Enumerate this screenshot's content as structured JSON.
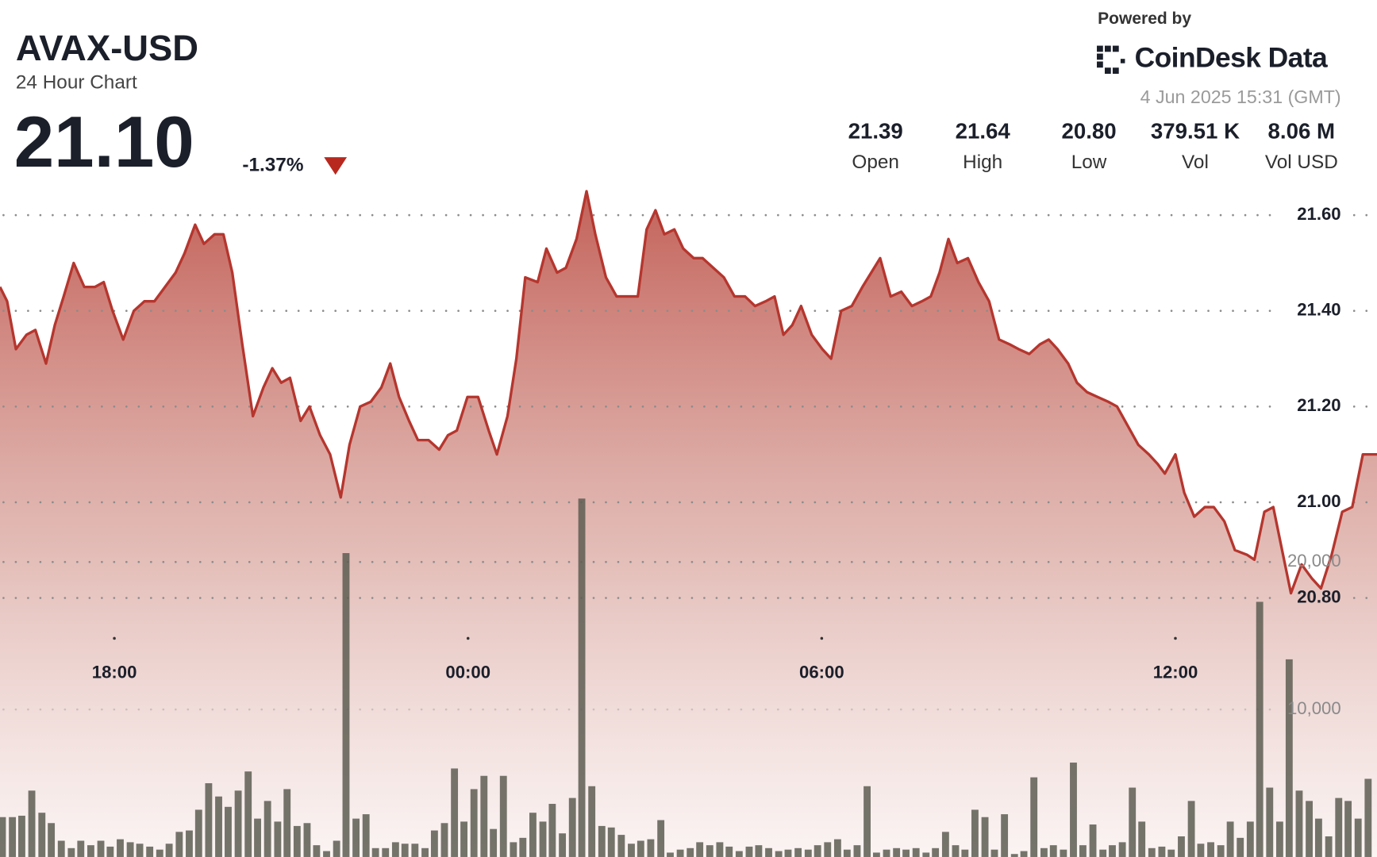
{
  "header": {
    "title": "AVAX-USD",
    "subtitle": "24 Hour Chart",
    "price": "21.10",
    "change": "-1.37%",
    "powered_by": "Powered by",
    "brand": "CoinDesk Data",
    "timestamp": "4 Jun 2025 15:31 (GMT)",
    "stats": [
      {
        "value": "21.39",
        "label": "Open"
      },
      {
        "value": "21.64",
        "label": "High"
      },
      {
        "value": "20.80",
        "label": "Low"
      },
      {
        "value": "379.51 K",
        "label": "Vol"
      },
      {
        "value": "8.06 M",
        "label": "Vol USD"
      }
    ]
  },
  "chart_data": {
    "type": "area",
    "xlim": [
      16.06,
      39.42
    ],
    "xticks": [
      {
        "value": 18,
        "label": "18:00"
      },
      {
        "value": 24,
        "label": "00:00"
      },
      {
        "value": 30,
        "label": "06:00"
      },
      {
        "value": 36,
        "label": "12:00"
      }
    ],
    "ylim": [
      20.26,
      21.7
    ],
    "yticks": [
      {
        "value": 21.6,
        "label": "21.60"
      },
      {
        "value": 21.4,
        "label": "21.40"
      },
      {
        "value": 21.2,
        "label": "21.20"
      },
      {
        "value": 21.0,
        "label": "21.00"
      },
      {
        "value": 20.8,
        "label": "20.80"
      }
    ],
    "y2lim": [
      0,
      40000
    ],
    "y2ticks": [
      {
        "value": 10000,
        "label": "10,000"
      },
      {
        "value": 20000,
        "label": "20,000"
      }
    ],
    "grid": true,
    "price": {
      "color": "#b5362e",
      "x": [
        16.06,
        16.18,
        16.33,
        16.51,
        16.66,
        16.84,
        16.99,
        17.14,
        17.31,
        17.49,
        17.67,
        17.82,
        17.97,
        18.15,
        18.33,
        18.51,
        18.68,
        18.86,
        19.04,
        19.19,
        19.37,
        19.52,
        19.7,
        19.85,
        20.0,
        20.17,
        20.35,
        20.53,
        20.68,
        20.83,
        20.98,
        21.16,
        21.31,
        21.49,
        21.66,
        21.84,
        21.99,
        22.17,
        22.35,
        22.53,
        22.68,
        22.83,
        23.0,
        23.15,
        23.33,
        23.51,
        23.66,
        23.81,
        23.99,
        24.17,
        24.35,
        24.49,
        24.67,
        24.82,
        24.97,
        25.18,
        25.33,
        25.51,
        25.66,
        25.84,
        26.01,
        26.16,
        26.34,
        26.52,
        26.7,
        26.88,
        27.03,
        27.18,
        27.33,
        27.5,
        27.65,
        27.83,
        27.98,
        28.16,
        28.34,
        28.52,
        28.7,
        28.87,
        29.05,
        29.2,
        29.35,
        29.5,
        29.65,
        29.83,
        30.01,
        30.16,
        30.33,
        30.51,
        30.69,
        30.84,
        30.99,
        31.17,
        31.35,
        31.53,
        31.7,
        31.85,
        32.0,
        32.15,
        32.3,
        32.48,
        32.66,
        32.84,
        33.01,
        33.19,
        33.34,
        33.52,
        33.7,
        33.85,
        34.0,
        34.18,
        34.33,
        34.5,
        34.68,
        34.86,
        35.01,
        35.19,
        35.37,
        35.55,
        35.7,
        35.82,
        36.0,
        36.15,
        36.32,
        36.5,
        36.65,
        36.83,
        37.01,
        37.22,
        37.34,
        37.51,
        37.66,
        37.81,
        37.96,
        38.14,
        38.32,
        38.47,
        38.65,
        38.83,
        39.0,
        39.18,
        39.42
      ],
      "values": [
        21.45,
        21.42,
        21.32,
        21.35,
        21.36,
        21.29,
        21.37,
        21.43,
        21.5,
        21.45,
        21.45,
        21.46,
        21.4,
        21.34,
        21.4,
        21.42,
        21.42,
        21.45,
        21.48,
        21.52,
        21.58,
        21.54,
        21.56,
        21.56,
        21.48,
        21.33,
        21.18,
        21.24,
        21.28,
        21.25,
        21.26,
        21.17,
        21.2,
        21.14,
        21.1,
        21.01,
        21.12,
        21.2,
        21.21,
        21.24,
        21.29,
        21.22,
        21.17,
        21.13,
        21.13,
        21.11,
        21.14,
        21.15,
        21.22,
        21.22,
        21.15,
        21.1,
        21.18,
        21.3,
        21.47,
        21.46,
        21.53,
        21.48,
        21.49,
        21.55,
        21.65,
        21.56,
        21.47,
        21.43,
        21.43,
        21.43,
        21.57,
        21.61,
        21.56,
        21.57,
        21.53,
        21.51,
        21.51,
        21.49,
        21.47,
        21.43,
        21.43,
        21.41,
        21.42,
        21.43,
        21.35,
        21.37,
        21.41,
        21.35,
        21.32,
        21.3,
        21.4,
        21.41,
        21.45,
        21.48,
        21.51,
        21.43,
        21.44,
        21.41,
        21.42,
        21.43,
        21.48,
        21.55,
        21.5,
        21.51,
        21.46,
        21.42,
        21.34,
        21.33,
        21.32,
        21.31,
        21.33,
        21.34,
        21.32,
        21.29,
        21.25,
        21.23,
        21.22,
        21.21,
        21.2,
        21.16,
        21.12,
        21.1,
        21.08,
        21.06,
        21.1,
        21.02,
        20.97,
        20.99,
        20.99,
        20.96,
        20.9,
        20.89,
        20.88,
        20.98,
        20.99,
        20.9,
        20.81,
        20.87,
        20.84,
        20.82,
        20.89,
        20.98,
        20.99,
        21.1,
        21.1
      ]
    },
    "volume": {
      "color": "#5d5d52",
      "axis": "y2",
      "x": [
        16.1,
        16.27,
        16.43,
        16.6,
        16.77,
        16.93,
        17.1,
        17.27,
        17.43,
        17.6,
        17.77,
        17.93,
        18.1,
        18.27,
        18.43,
        18.6,
        18.77,
        18.93,
        19.1,
        19.27,
        19.43,
        19.6,
        19.77,
        19.93,
        20.1,
        20.27,
        20.43,
        20.6,
        20.77,
        20.93,
        21.1,
        21.27,
        21.43,
        21.6,
        21.77,
        21.93,
        22.1,
        22.27,
        22.43,
        22.6,
        22.77,
        22.93,
        23.1,
        23.27,
        23.43,
        23.6,
        23.77,
        23.93,
        24.1,
        24.27,
        24.43,
        24.6,
        24.77,
        24.93,
        25.1,
        25.27,
        25.43,
        25.6,
        25.77,
        25.93,
        26.1,
        26.27,
        26.43,
        26.6,
        26.77,
        26.93,
        27.1,
        27.27,
        27.43,
        27.6,
        27.77,
        27.93,
        28.1,
        28.27,
        28.43,
        28.6,
        28.77,
        28.93,
        29.1,
        29.27,
        29.43,
        29.6,
        29.77,
        29.93,
        30.1,
        30.27,
        30.43,
        30.6,
        30.77,
        30.93,
        31.1,
        31.27,
        31.43,
        31.6,
        31.77,
        31.93,
        32.1,
        32.27,
        32.43,
        32.6,
        32.77,
        32.93,
        33.1,
        33.27,
        33.43,
        33.6,
        33.77,
        33.93,
        34.1,
        34.27,
        34.43,
        34.6,
        34.77,
        34.93,
        35.1,
        35.27,
        35.43,
        35.6,
        35.77,
        35.93,
        36.1,
        36.27,
        36.43,
        36.6,
        36.77,
        36.93,
        37.1,
        37.27,
        37.43,
        37.6,
        37.77,
        37.93,
        38.1,
        38.27,
        38.43,
        38.6,
        38.77,
        38.93,
        39.1,
        39.27
      ],
      "values": [
        2700,
        2700,
        2800,
        4500,
        3000,
        2300,
        1100,
        600,
        1100,
        800,
        1100,
        700,
        1200,
        1000,
        900,
        700,
        500,
        900,
        1700,
        1800,
        3200,
        5000,
        4100,
        3400,
        4500,
        5800,
        2600,
        3800,
        2400,
        4600,
        2100,
        2300,
        800,
        400,
        1100,
        20600,
        2600,
        2900,
        600,
        600,
        1000,
        900,
        900,
        600,
        1800,
        2300,
        6000,
        2400,
        4600,
        5500,
        1900,
        5500,
        1000,
        1300,
        3000,
        2400,
        3600,
        1600,
        4000,
        24300,
        4800,
        2100,
        2000,
        1500,
        900,
        1100,
        1200,
        2500,
        300,
        500,
        600,
        1000,
        800,
        1000,
        700,
        400,
        700,
        800,
        600,
        400,
        500,
        600,
        500,
        800,
        1000,
        1200,
        500,
        800,
        4800,
        300,
        500,
        600,
        500,
        600,
        300,
        600,
        1700,
        800,
        500,
        3200,
        2700,
        500,
        2900,
        200,
        400,
        5400,
        600,
        800,
        500,
        6400,
        800,
        2200,
        500,
        800,
        1000,
        4700,
        2400,
        600,
        700,
        500,
        1400,
        3800,
        900,
        1000,
        800,
        2400,
        1300,
        2400,
        17300,
        4700,
        2400,
        13400,
        4500,
        3800,
        2600,
        1400,
        4000,
        3800,
        2600,
        5300
      ]
    }
  }
}
